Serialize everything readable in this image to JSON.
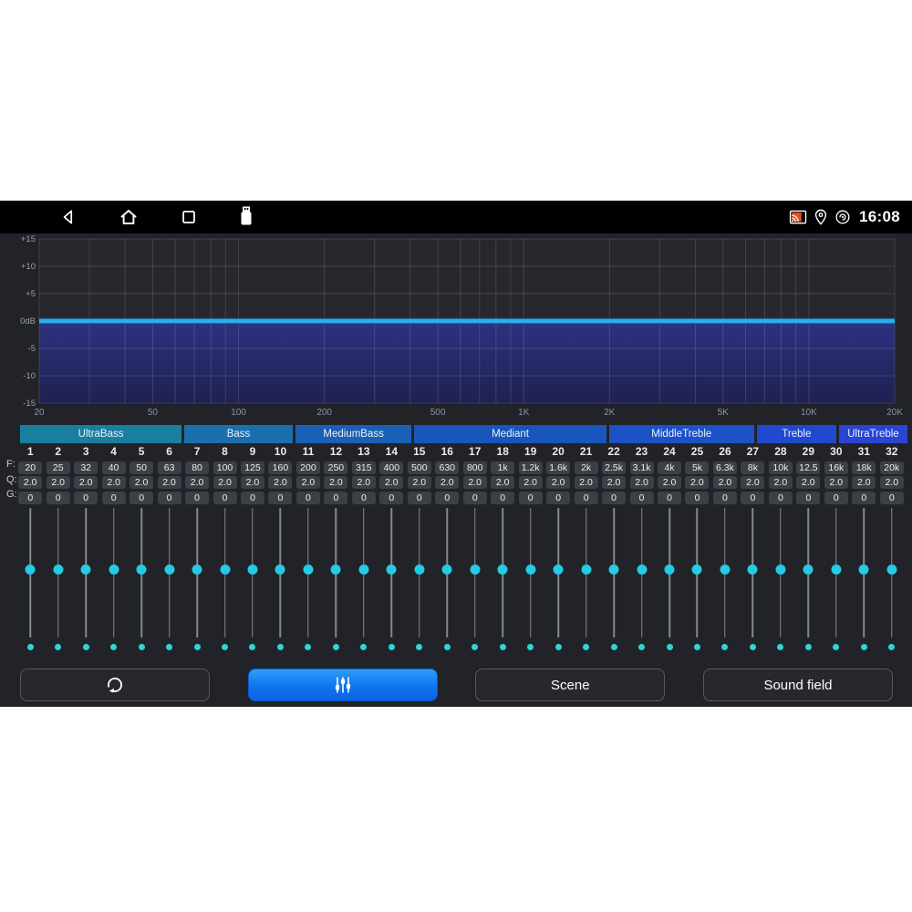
{
  "status_bar": {
    "time": "16:08",
    "left_icons": [
      "back-icon",
      "home-icon",
      "recents-icon",
      "usb-icon"
    ],
    "right_icons": [
      "cast-icon",
      "location-icon",
      "hotspot-icon"
    ]
  },
  "graph": {
    "type": "line",
    "description": "EQ frequency response, flat at 0dB with filled area below",
    "y_tick_labels": [
      "+15",
      "+10",
      "+5",
      "0dB",
      "-5",
      "-10",
      "-15"
    ],
    "y_tick_values": [
      15,
      10,
      5,
      0,
      -5,
      -10,
      -15
    ],
    "db_range": [
      -15,
      15
    ],
    "x_tick_labels": [
      "20",
      "50",
      "100",
      "200",
      "500",
      "1K",
      "2K",
      "5K",
      "10K",
      "20K"
    ],
    "x_tick_freqs": [
      20,
      50,
      100,
      200,
      500,
      1000,
      2000,
      5000,
      10000,
      20000
    ],
    "grid_freqs": [
      20,
      30,
      40,
      50,
      60,
      70,
      80,
      90,
      100,
      200,
      300,
      400,
      500,
      600,
      700,
      800,
      900,
      1000,
      2000,
      3000,
      4000,
      5000,
      6000,
      7000,
      8000,
      9000,
      10000,
      20000
    ],
    "freq_range": [
      20,
      20000
    ],
    "response_db": 0,
    "grid_on": true,
    "line_color": "#2bafe9",
    "line_edge_color": "#17699f",
    "fill_top_color": "#2d3180",
    "fill_bottom_color": "#1e2150",
    "plot_bg_color": "#26282d"
  },
  "band_groups": [
    {
      "label": "UltraBass",
      "flex": 5.9,
      "color": "#1a7f9e"
    },
    {
      "label": "Bass",
      "flex": 3.95,
      "color": "#1b6fae"
    },
    {
      "label": "MediumBass",
      "flex": 4.25,
      "color": "#1a60b5"
    },
    {
      "label": "Mediant",
      "flex": 7.0,
      "color": "#1856bc"
    },
    {
      "label": "MiddleTreble",
      "flex": 5.3,
      "color": "#1d52c6"
    },
    {
      "label": "Treble",
      "flex": 2.9,
      "color": "#2149ce"
    },
    {
      "label": "UltraTreble",
      "flex": 2.5,
      "color": "#2a44d4"
    }
  ],
  "row_labels": {
    "f": "F:",
    "q": "Q:",
    "g": "G:"
  },
  "bands": [
    {
      "n": "1",
      "f": "20",
      "q": "2.0",
      "g": "0"
    },
    {
      "n": "2",
      "f": "25",
      "q": "2.0",
      "g": "0"
    },
    {
      "n": "3",
      "f": "32",
      "q": "2.0",
      "g": "0"
    },
    {
      "n": "4",
      "f": "40",
      "q": "2.0",
      "g": "0"
    },
    {
      "n": "5",
      "f": "50",
      "q": "2.0",
      "g": "0"
    },
    {
      "n": "6",
      "f": "63",
      "q": "2.0",
      "g": "0"
    },
    {
      "n": "7",
      "f": "80",
      "q": "2.0",
      "g": "0"
    },
    {
      "n": "8",
      "f": "100",
      "q": "2.0",
      "g": "0"
    },
    {
      "n": "9",
      "f": "125",
      "q": "2.0",
      "g": "0"
    },
    {
      "n": "10",
      "f": "160",
      "q": "2.0",
      "g": "0"
    },
    {
      "n": "11",
      "f": "200",
      "q": "2.0",
      "g": "0"
    },
    {
      "n": "12",
      "f": "250",
      "q": "2.0",
      "g": "0"
    },
    {
      "n": "13",
      "f": "315",
      "q": "2.0",
      "g": "0"
    },
    {
      "n": "14",
      "f": "400",
      "q": "2.0",
      "g": "0"
    },
    {
      "n": "15",
      "f": "500",
      "q": "2.0",
      "g": "0"
    },
    {
      "n": "16",
      "f": "630",
      "q": "2.0",
      "g": "0"
    },
    {
      "n": "17",
      "f": "800",
      "q": "2.0",
      "g": "0"
    },
    {
      "n": "18",
      "f": "1k",
      "q": "2.0",
      "g": "0"
    },
    {
      "n": "19",
      "f": "1.2k",
      "q": "2.0",
      "g": "0"
    },
    {
      "n": "20",
      "f": "1.6k",
      "q": "2.0",
      "g": "0"
    },
    {
      "n": "21",
      "f": "2k",
      "q": "2.0",
      "g": "0"
    },
    {
      "n": "22",
      "f": "2.5k",
      "q": "2.0",
      "g": "0"
    },
    {
      "n": "23",
      "f": "3.1k",
      "q": "2.0",
      "g": "0"
    },
    {
      "n": "24",
      "f": "4k",
      "q": "2.0",
      "g": "0"
    },
    {
      "n": "25",
      "f": "5k",
      "q": "2.0",
      "g": "0"
    },
    {
      "n": "26",
      "f": "6.3k",
      "q": "2.0",
      "g": "0"
    },
    {
      "n": "27",
      "f": "8k",
      "q": "2.0",
      "g": "0"
    },
    {
      "n": "28",
      "f": "10k",
      "q": "2.0",
      "g": "0"
    },
    {
      "n": "29",
      "f": "12.5",
      "q": "2.0",
      "g": "0"
    },
    {
      "n": "30",
      "f": "16k",
      "q": "2.0",
      "g": "0"
    },
    {
      "n": "31",
      "f": "18k",
      "q": "2.0",
      "g": "0"
    },
    {
      "n": "32",
      "f": "20k",
      "q": "2.0",
      "g": "0"
    }
  ],
  "slider": {
    "thumb_color": "#24cbe6",
    "dot_color": "#2cd6d6",
    "value_position_pct": 44
  },
  "buttons": [
    {
      "id": "reset",
      "label": "",
      "icon": "reset-icon"
    },
    {
      "id": "equalizer",
      "label": "",
      "icon": "equalizer-sliders-icon",
      "active": true
    },
    {
      "id": "scene",
      "label": "Scene"
    },
    {
      "id": "sound_field",
      "label": "Sound field"
    }
  ]
}
